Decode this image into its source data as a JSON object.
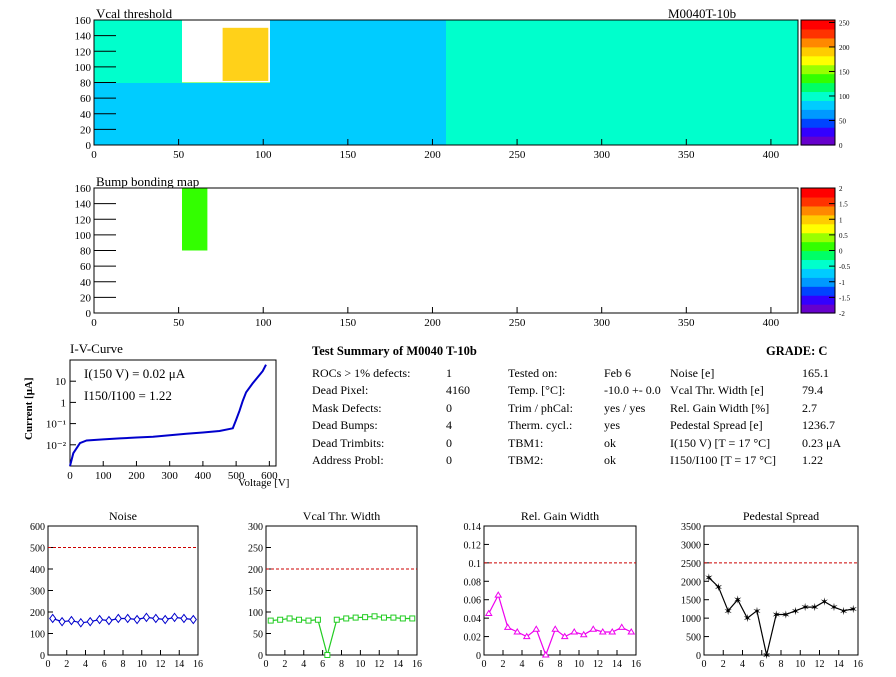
{
  "header": {
    "module_id": "M0040T-10b"
  },
  "colors": {
    "red_line": "#cc0000",
    "vcal_blue": "#0000cc",
    "vcal_green": "#22cc22",
    "gain_magenta": "#ee00ee",
    "axis": "#000000"
  },
  "palette_gradient": [
    "#6600cc",
    "#3300ff",
    "#0044ff",
    "#0099ff",
    "#00ccff",
    "#00ffcc",
    "#00ff66",
    "#33ff00",
    "#99ff00",
    "#ffff00",
    "#ffcc00",
    "#ff8800",
    "#ff3300",
    "#ff0000"
  ],
  "vcal_map": {
    "title": "Vcal threshold",
    "x_ticks": [
      "0",
      "50",
      "100",
      "150",
      "200",
      "250",
      "300",
      "350",
      "400"
    ],
    "y_ticks": [
      "0",
      "20",
      "40",
      "60",
      "80",
      "100",
      "120",
      "140",
      "160"
    ],
    "colorbar_ticks": [
      "0",
      "50",
      "100",
      "150",
      "200",
      "250"
    ],
    "x_range": [
      0,
      416
    ],
    "y_range": [
      0,
      160
    ],
    "z_range": [
      0,
      255
    ],
    "roc_levels": [
      [
        85,
        80,
        85,
        80,
        95,
        95,
        95,
        95
      ],
      [
        92,
        130,
        85,
        88,
        100,
        92,
        100,
        100
      ]
    ],
    "white_region": {
      "x": [
        52,
        104
      ],
      "y": [
        80,
        160
      ]
    },
    "red_hotspot": {
      "x": [
        76,
        103
      ],
      "y": [
        82,
        150
      ],
      "value": 190
    }
  },
  "bump_map": {
    "title": "Bump bonding map",
    "x_ticks": [
      "0",
      "50",
      "100",
      "150",
      "200",
      "250",
      "300",
      "350",
      "400"
    ],
    "y_ticks": [
      "0",
      "20",
      "40",
      "60",
      "80",
      "100",
      "120",
      "140",
      "160"
    ],
    "colorbar_ticks": [
      "2",
      "1.5",
      "1",
      "0.5",
      "0",
      "-0.5",
      "-1",
      "-1.5",
      "-2"
    ],
    "x_range": [
      0,
      416
    ],
    "y_range": [
      0,
      160
    ],
    "z_range": [
      -2,
      2
    ],
    "green_region": {
      "x": [
        52,
        67
      ],
      "y": [
        80,
        160
      ],
      "value": 0
    }
  },
  "iv_curve": {
    "title": "I-V-Curve",
    "ylabel": "Current [μA]",
    "xlabel": "Voltage [V]",
    "x_ticks": [
      "0",
      "100",
      "200",
      "300",
      "400",
      "500",
      "600"
    ],
    "y_ticks": [
      "10⁻²",
      "10⁻¹",
      "1",
      "10"
    ],
    "annotation_i150": "I(150 V) = 0.02 μA",
    "annotation_ratio": "I150/I100 = 1.22"
  },
  "chart_data": [
    {
      "type": "line",
      "title": "I-V-Curve",
      "xlabel": "Voltage [V]",
      "ylabel": "Current [μA]",
      "y_scale": "log",
      "x": [
        0,
        10,
        30,
        50,
        100,
        150,
        200,
        250,
        300,
        350,
        400,
        450,
        490,
        500,
        510,
        520,
        530,
        550,
        580,
        590
      ],
      "y": [
        0.001,
        0.004,
        0.012,
        0.016,
        0.018,
        0.02,
        0.022,
        0.024,
        0.028,
        0.033,
        0.038,
        0.045,
        0.06,
        0.15,
        0.4,
        1.2,
        3.0,
        8.0,
        30,
        60
      ],
      "xlim": [
        0,
        620
      ],
      "ylim": [
        0.001,
        100
      ]
    },
    {
      "type": "scatter",
      "title": "Noise",
      "x": [
        0,
        1,
        2,
        3,
        4,
        5,
        6,
        7,
        8,
        9,
        10,
        11,
        12,
        13,
        14,
        15
      ],
      "y": [
        170,
        155,
        160,
        150,
        155,
        165,
        160,
        170,
        170,
        165,
        175,
        170,
        165,
        175,
        170,
        165
      ],
      "ylim": [
        0,
        600
      ],
      "threshold": 500
    },
    {
      "type": "scatter",
      "title": "Vcal Thr. Width",
      "x": [
        0,
        1,
        2,
        3,
        4,
        5,
        6,
        7,
        8,
        9,
        10,
        11,
        12,
        13,
        14,
        15
      ],
      "y": [
        80,
        82,
        85,
        82,
        80,
        82,
        0,
        82,
        85,
        87,
        88,
        90,
        87,
        87,
        85,
        85
      ],
      "ylim": [
        0,
        300
      ],
      "threshold": 200
    },
    {
      "type": "scatter",
      "title": "Rel. Gain Width",
      "x": [
        0,
        1,
        2,
        3,
        4,
        5,
        6,
        7,
        8,
        9,
        10,
        11,
        12,
        13,
        14,
        15
      ],
      "y": [
        0.045,
        0.065,
        0.03,
        0.025,
        0.02,
        0.028,
        0.0,
        0.028,
        0.02,
        0.025,
        0.022,
        0.028,
        0.025,
        0.025,
        0.03,
        0.025
      ],
      "ylim": [
        0,
        0.14
      ],
      "threshold": 0.1
    },
    {
      "type": "line",
      "title": "Pedestal Spread",
      "x": [
        0,
        1,
        2,
        3,
        4,
        5,
        6,
        7,
        8,
        9,
        10,
        11,
        12,
        13,
        14,
        15
      ],
      "y": [
        2100,
        1850,
        1200,
        1500,
        1000,
        1200,
        0,
        1100,
        1100,
        1200,
        1300,
        1300,
        1450,
        1300,
        1200,
        1250
      ],
      "ylim": [
        0,
        3500
      ],
      "threshold": 2500
    }
  ],
  "small_plots": [
    {
      "title": "Noise",
      "y_ticks": [
        "0",
        "100",
        "200",
        "300",
        "400",
        "500",
        "600"
      ],
      "x_ticks": [
        "0",
        "2",
        "4",
        "6",
        "8",
        "10",
        "12",
        "14",
        "16"
      ]
    },
    {
      "title": "Vcal Thr. Width",
      "y_ticks": [
        "0",
        "50",
        "100",
        "150",
        "200",
        "250",
        "300"
      ],
      "x_ticks": [
        "0",
        "2",
        "4",
        "6",
        "8",
        "10",
        "12",
        "14",
        "16"
      ]
    },
    {
      "title": "Rel. Gain Width",
      "y_ticks": [
        "0",
        "0.02",
        "0.04",
        "0.06",
        "0.08",
        "0.1",
        "0.12",
        "0.14"
      ],
      "x_ticks": [
        "0",
        "2",
        "4",
        "6",
        "8",
        "10",
        "12",
        "14",
        "16"
      ]
    },
    {
      "title": "Pedestal Spread",
      "y_ticks": [
        "0",
        "500",
        "1000",
        "1500",
        "2000",
        "2500",
        "3000",
        "3500"
      ],
      "x_ticks": [
        "0",
        "2",
        "4",
        "6",
        "8",
        "10",
        "12",
        "14",
        "16"
      ]
    }
  ],
  "summary": {
    "title": "Test Summary of M0040     T-10b",
    "grade": "GRADE:  C",
    "col1": [
      {
        "label": "ROCs > 1% defects:",
        "value": "1"
      },
      {
        "label": "Dead Pixel:",
        "value": "4160"
      },
      {
        "label": "Mask Defects:",
        "value": "0"
      },
      {
        "label": "Dead Bumps:",
        "value": "4"
      },
      {
        "label": "Dead Trimbits:",
        "value": "0"
      },
      {
        "label": "Address Probl:",
        "value": "0"
      }
    ],
    "col2": [
      {
        "label": "Tested on:",
        "value": "Feb 6"
      },
      {
        "label": "Temp. [°C]:",
        "value": "-10.0 +- 0.0"
      },
      {
        "label": "Trim / phCal:",
        "value": "yes / yes"
      },
      {
        "label": "Therm. cycl.:",
        "value": "yes"
      },
      {
        "label": "TBM1:",
        "value": "ok"
      },
      {
        "label": "TBM2:",
        "value": "ok"
      }
    ],
    "col3": [
      {
        "label": "Noise [e]",
        "value": "165.1"
      },
      {
        "label": "Vcal Thr. Width [e]",
        "value": "79.4"
      },
      {
        "label": "Rel. Gain Width [%]",
        "value": "2.7"
      },
      {
        "label": "Pedestal Spread [e]",
        "value": "1236.7"
      },
      {
        "label": "I(150 V) [T = 17 °C]",
        "value": "0.23 μA"
      },
      {
        "label": "I150/I100  [T = 17 °C]",
        "value": "1.22"
      }
    ]
  }
}
